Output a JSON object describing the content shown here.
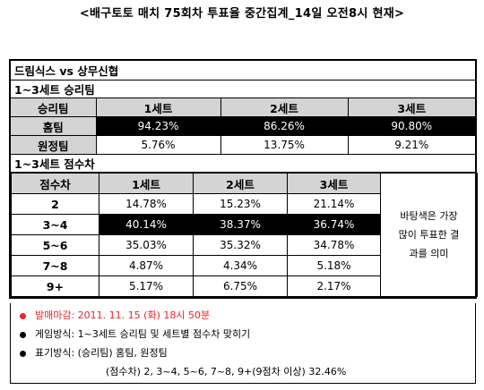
{
  "page_title": "<배구토토 매치 75회차 투표율 중간집계_14일 오전8시 현재>",
  "match_header": "드림식스 vs 상무신협",
  "section1": {
    "title": "1~3세트 승리팀",
    "col_label": "승리팀",
    "sets": [
      "1세트",
      "2세트",
      "3세트"
    ],
    "rows": [
      {
        "label": "홈팀",
        "values": [
          "94.23%",
          "86.26%",
          "90.80%"
        ]
      },
      {
        "label": "원정팀",
        "values": [
          "5.76%",
          "13.75%",
          "9.21%"
        ]
      }
    ]
  },
  "section2": {
    "title": "1~3세트 점수차",
    "col_label": "점수차",
    "sets": [
      "1세트",
      "2세트",
      "3세트"
    ],
    "rows": [
      {
        "label": "2",
        "values": [
          "14.78%",
          "15.23%",
          "21.14%"
        ]
      },
      {
        "label": "3~4",
        "values": [
          "40.14%",
          "38.37%",
          "36.74%"
        ]
      },
      {
        "label": "5~6",
        "values": [
          "35.03%",
          "35.32%",
          "34.78%"
        ]
      },
      {
        "label": "7~8",
        "values": [
          "4.87%",
          "4.34%",
          "5.18%"
        ]
      },
      {
        "label": "9+",
        "values": [
          "5.17%",
          "6.75%",
          "2.17%"
        ]
      }
    ],
    "side_note": [
      "바탕색은 가장",
      "많이 투표한 결",
      "과를 의미"
    ]
  },
  "notes": {
    "deadline": "발매마감: 2011. 11. 15 (화) 18시  50분",
    "game_method": "게임방식: 1~3세트  승리팀 및  세트별 점수차 맞히기",
    "notation": "표기방식: (승리팀) 홈팀, 원정팀",
    "notation_detail": "(점수차) 2, 3~4, 5~6, 7~8, 9+(9점차  이상) 32.46%"
  },
  "colors": {
    "header_gray": "#d4d4d4",
    "highlight": "#000000",
    "deadline_red": "#e8262a"
  }
}
